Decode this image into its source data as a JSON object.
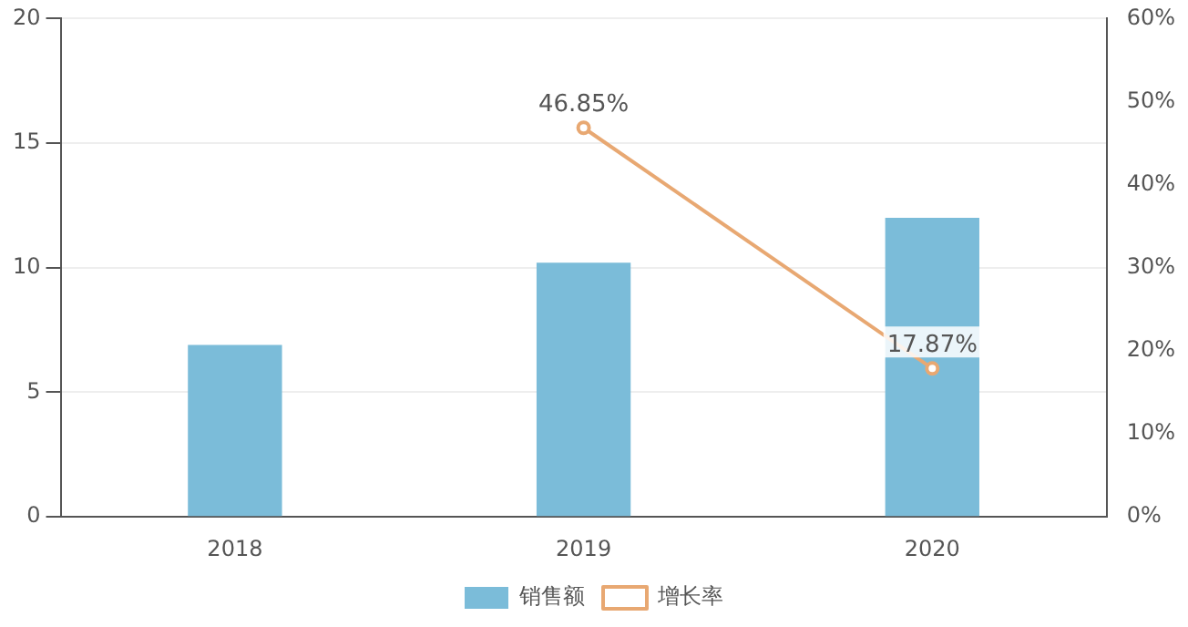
{
  "chart_data": {
    "type": "bar",
    "categories": [
      "2018",
      "2019",
      "2020"
    ],
    "series": [
      {
        "name": "销售额",
        "color": "#7bbcd9",
        "values": [
          6.9,
          10.2,
          12.0
        ]
      },
      {
        "name": "增长率",
        "type": "line",
        "axis": "y2",
        "color": "#e8a872",
        "values": [
          null,
          46.85,
          17.87
        ],
        "value_labels": [
          null,
          "46.85%",
          "17.87%"
        ]
      }
    ],
    "ylim": [
      0,
      20
    ],
    "yticks": [
      0,
      5,
      10,
      15,
      20
    ],
    "y2lim": [
      0,
      60
    ],
    "y2ticks": [
      {
        "value": 0,
        "label": "0%"
      },
      {
        "value": 10,
        "label": "10%"
      },
      {
        "value": 20,
        "label": "20%"
      },
      {
        "value": 30,
        "label": "30%"
      },
      {
        "value": 40,
        "label": "40%"
      },
      {
        "value": 50,
        "label": "50%"
      },
      {
        "value": 60,
        "label": "60%"
      }
    ],
    "grid": "y",
    "legend": "bottom",
    "marker": "circle"
  }
}
